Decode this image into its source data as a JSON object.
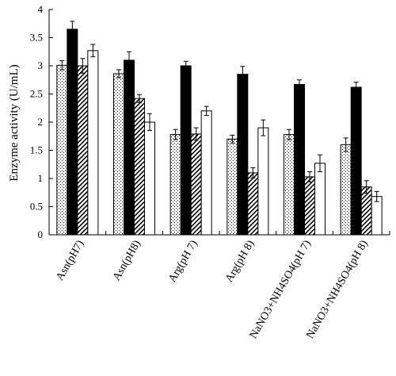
{
  "chart_data": {
    "type": "bar",
    "title": "",
    "xlabel": "",
    "ylabel": "Enzyme activity (U/mL)",
    "ylim": [
      0,
      4
    ],
    "yticks": [
      "0",
      "0.5",
      "1",
      "1.5",
      "2",
      "2.5",
      "3",
      "3.5",
      "4"
    ],
    "grid": false,
    "legend": "none",
    "categories": [
      "Asn(pH7)",
      "Asn(pH8)",
      "Arg(pH 7)",
      "Arg(pH 8)",
      "NaNO3+NH4SO4(pH 7)",
      "NaNO3+NH4SO4(pH 8)"
    ],
    "series": [
      {
        "fill": "dotted",
        "values": [
          3.01,
          2.86,
          1.78,
          1.7,
          1.78,
          1.6
        ],
        "errors": [
          0.08,
          0.07,
          0.09,
          0.07,
          0.09,
          0.12
        ]
      },
      {
        "fill": "solid-black",
        "values": [
          3.65,
          3.1,
          3.0,
          2.85,
          2.67,
          2.62
        ],
        "errors": [
          0.14,
          0.15,
          0.08,
          0.14,
          0.08,
          0.09
        ]
      },
      {
        "fill": "diagonal-hatch",
        "values": [
          3.0,
          2.42,
          1.79,
          1.1,
          1.03,
          0.85
        ],
        "errors": [
          0.13,
          0.07,
          0.11,
          0.09,
          0.09,
          0.11
        ]
      },
      {
        "fill": "white",
        "values": [
          3.27,
          2.0,
          2.2,
          1.9,
          1.27,
          0.68
        ],
        "errors": [
          0.11,
          0.15,
          0.08,
          0.14,
          0.15,
          0.09
        ]
      }
    ]
  }
}
